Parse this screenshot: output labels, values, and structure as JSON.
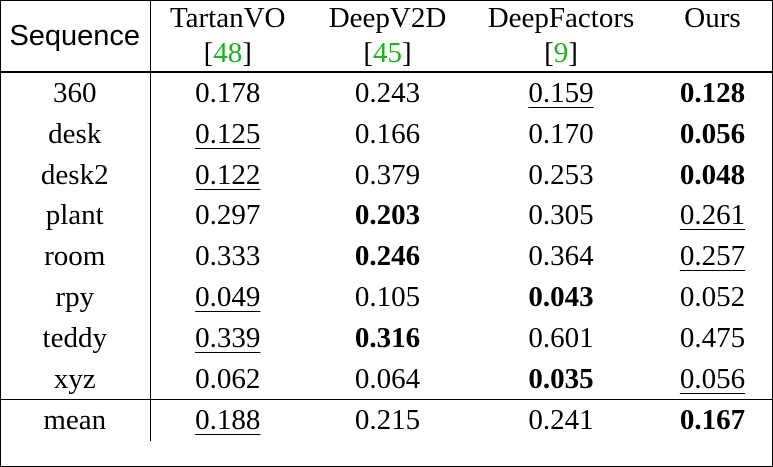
{
  "table": {
    "header": {
      "sequence": "Sequence",
      "columns": [
        {
          "name": "TartanVO",
          "ref": "48"
        },
        {
          "name": "DeepV2D",
          "ref": "45"
        },
        {
          "name": "DeepFactors",
          "ref": "9"
        },
        {
          "name": "Ours",
          "ref": ""
        }
      ]
    },
    "rows": [
      {
        "label": "360",
        "cells": [
          {
            "v": "0.178",
            "s": ""
          },
          {
            "v": "0.243",
            "s": ""
          },
          {
            "v": "0.159",
            "s": "underline"
          },
          {
            "v": "0.128",
            "s": "bold"
          }
        ]
      },
      {
        "label": "desk",
        "cells": [
          {
            "v": "0.125",
            "s": "underline"
          },
          {
            "v": "0.166",
            "s": ""
          },
          {
            "v": "0.170",
            "s": ""
          },
          {
            "v": "0.056",
            "s": "bold"
          }
        ]
      },
      {
        "label": "desk2",
        "cells": [
          {
            "v": "0.122",
            "s": "underline"
          },
          {
            "v": "0.379",
            "s": ""
          },
          {
            "v": "0.253",
            "s": ""
          },
          {
            "v": "0.048",
            "s": "bold"
          }
        ]
      },
      {
        "label": "plant",
        "cells": [
          {
            "v": "0.297",
            "s": ""
          },
          {
            "v": "0.203",
            "s": "bold"
          },
          {
            "v": "0.305",
            "s": ""
          },
          {
            "v": "0.261",
            "s": "underline"
          }
        ]
      },
      {
        "label": "room",
        "cells": [
          {
            "v": "0.333",
            "s": ""
          },
          {
            "v": "0.246",
            "s": "bold"
          },
          {
            "v": "0.364",
            "s": ""
          },
          {
            "v": "0.257",
            "s": "underline"
          }
        ]
      },
      {
        "label": "rpy",
        "cells": [
          {
            "v": "0.049",
            "s": "underline"
          },
          {
            "v": "0.105",
            "s": ""
          },
          {
            "v": "0.043",
            "s": "bold"
          },
          {
            "v": "0.052",
            "s": ""
          }
        ]
      },
      {
        "label": "teddy",
        "cells": [
          {
            "v": "0.339",
            "s": "underline"
          },
          {
            "v": "0.316",
            "s": "bold"
          },
          {
            "v": "0.601",
            "s": ""
          },
          {
            "v": "0.475",
            "s": ""
          }
        ]
      },
      {
        "label": "xyz",
        "cells": [
          {
            "v": "0.062",
            "s": ""
          },
          {
            "v": "0.064",
            "s": ""
          },
          {
            "v": "0.035",
            "s": "bold"
          },
          {
            "v": "0.056",
            "s": "underline"
          }
        ]
      }
    ],
    "summary": {
      "label": "mean",
      "cells": [
        {
          "v": "0.188",
          "s": "underline"
        },
        {
          "v": "0.215",
          "s": ""
        },
        {
          "v": "0.241",
          "s": ""
        },
        {
          "v": "0.167",
          "s": "bold"
        }
      ]
    }
  },
  "colors": {
    "reference_link": "#1db31d",
    "text": "#000000"
  }
}
